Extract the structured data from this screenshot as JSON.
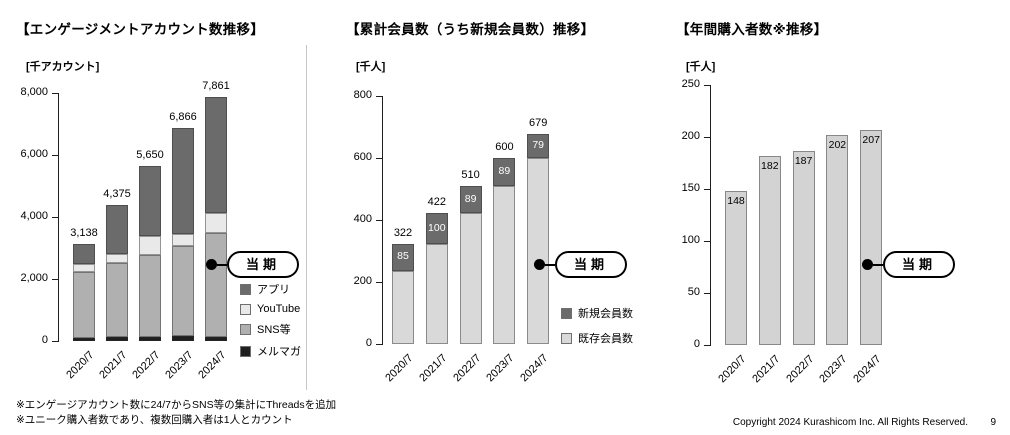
{
  "callout": {
    "label": "当期"
  },
  "footnotes": [
    "※エンゲージアカウント数に24/7からSNS等の集計にThreadsを追加",
    "※ユニーク購入者数であり、複数回購入者は1人とカウント"
  ],
  "footer": {
    "copyright": "Copyright 2024 Kurashicom Inc. All Rights Reserved.",
    "page_number": "9"
  },
  "chart_data": [
    {
      "type": "bar",
      "stacked": true,
      "title": "【エンゲージメントアカウント数推移】",
      "unit_label": "[千アカウント]",
      "categories": [
        "2020/7",
        "2021/7",
        "2022/7",
        "2023/7",
        "2024/7"
      ],
      "totals": [
        3138,
        4375,
        5650,
        6866,
        7861
      ],
      "total_labels": [
        "3,138",
        "4,375",
        "5,650",
        "6,866",
        "7,861"
      ],
      "ylim": [
        0,
        8000
      ],
      "yticks": [
        0,
        2000,
        4000,
        6000,
        8000
      ],
      "ytick_labels": [
        "0",
        "2,000",
        "4,000",
        "6,000",
        "8,000"
      ],
      "series": [
        {
          "name": "メルマガ",
          "color": "#1f1f1f",
          "values": [
            110,
            120,
            140,
            150,
            130
          ]
        },
        {
          "name": "SNS等",
          "color": "#b0b0b0",
          "values": [
            2120,
            2390,
            2630,
            2930,
            3350
          ]
        },
        {
          "name": "YouTube",
          "color": "#e9e9e9",
          "values": [
            260,
            290,
            630,
            360,
            660
          ]
        },
        {
          "name": "アプリ",
          "color": "#6b6b6b",
          "values": [
            648,
            1575,
            2250,
            3426,
            3721
          ]
        }
      ],
      "legend": [
        "アプリ",
        "YouTube",
        "SNS等",
        "メルマガ"
      ],
      "legend_position": "right-bottom",
      "grid": false
    },
    {
      "type": "bar",
      "stacked": true,
      "title": "【累計会員数（うち新規会員数）推移】",
      "unit_label": "[千人]",
      "categories": [
        "2020/7",
        "2021/7",
        "2022/7",
        "2023/7",
        "2024/7"
      ],
      "totals": [
        322,
        422,
        510,
        600,
        679
      ],
      "total_labels": [
        "322",
        "422",
        "510",
        "600",
        "679"
      ],
      "ylim": [
        0,
        800
      ],
      "yticks": [
        0,
        200,
        400,
        600,
        800
      ],
      "ytick_labels": [
        "0",
        "200",
        "400",
        "600",
        "800"
      ],
      "series": [
        {
          "name": "既存会員数",
          "color": "#d9d9d9",
          "values": [
            237,
            322,
            421,
            511,
            600
          ]
        },
        {
          "name": "新規会員数",
          "color": "#6b6b6b",
          "values": [
            85,
            100,
            89,
            89,
            79
          ],
          "value_labels": [
            "85",
            "100",
            "89",
            "89",
            "79"
          ],
          "value_label_color": "#ffffff"
        }
      ],
      "legend": [
        "新規会員数",
        "既存会員数"
      ],
      "legend_position": "right-bottom",
      "grid": false
    },
    {
      "type": "bar",
      "stacked": false,
      "title": "【年間購入者数※推移】",
      "unit_label": "[千人]",
      "categories": [
        "2020/7",
        "2021/7",
        "2022/7",
        "2023/7",
        "2024/7"
      ],
      "values": [
        148,
        182,
        187,
        202,
        207
      ],
      "value_labels": [
        "148",
        "182",
        "187",
        "202",
        "207"
      ],
      "value_label_position": "inside-top",
      "bar_color": "#d3d3d3",
      "ylim": [
        0,
        250
      ],
      "yticks": [
        0,
        50,
        100,
        150,
        200,
        250
      ],
      "ytick_labels": [
        "0",
        "50",
        "100",
        "150",
        "200",
        "250"
      ],
      "grid": false
    }
  ]
}
